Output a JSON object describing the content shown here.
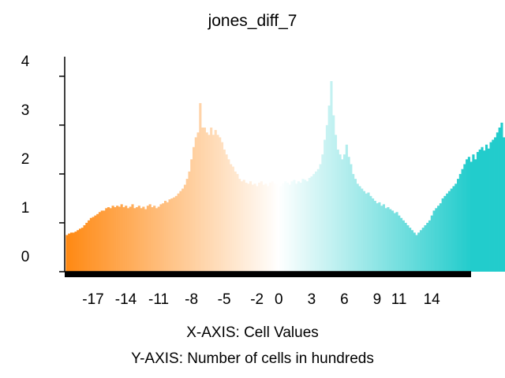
{
  "chart_data": {
    "type": "bar",
    "title": "jones_diff_7",
    "xlabel": "X-AXIS: Cell Values",
    "ylabel": "Y-AXIS: Number of cells in hundreds",
    "xlim": [
      -19.6,
      17.6
    ],
    "ylim": [
      0,
      4.4
    ],
    "x_ticks": [
      -17,
      -14,
      -11,
      -8,
      -5,
      -2,
      0,
      3,
      6,
      9,
      11,
      14
    ],
    "y_ticks": [
      0,
      1,
      2,
      3,
      4
    ],
    "grid": false,
    "legend": "none",
    "colors": {
      "low": "#ff8811",
      "mid": "#ffffff",
      "high": "#22cccc"
    },
    "bin_width": 0.2,
    "x_start": -19.5,
    "values": [
      0.75,
      0.78,
      0.8,
      0.8,
      0.82,
      0.85,
      0.88,
      0.9,
      0.95,
      1.0,
      1.05,
      1.1,
      1.12,
      1.15,
      1.18,
      1.22,
      1.25,
      1.25,
      1.3,
      1.32,
      1.3,
      1.35,
      1.32,
      1.35,
      1.33,
      1.38,
      1.32,
      1.35,
      1.3,
      1.33,
      1.38,
      1.3,
      1.32,
      1.35,
      1.3,
      1.33,
      1.28,
      1.35,
      1.38,
      1.32,
      1.35,
      1.3,
      1.33,
      1.38,
      1.4,
      1.45,
      1.42,
      1.48,
      1.5,
      1.52,
      1.55,
      1.6,
      1.65,
      1.7,
      1.78,
      1.9,
      2.05,
      2.3,
      2.55,
      2.75,
      2.85,
      3.45,
      2.95,
      2.95,
      2.85,
      2.8,
      2.95,
      2.8,
      2.9,
      2.8,
      2.75,
      2.65,
      2.5,
      2.4,
      2.3,
      2.2,
      2.15,
      2.05,
      2.0,
      1.9,
      1.85,
      1.88,
      1.82,
      1.8,
      1.85,
      1.78,
      1.8,
      1.75,
      1.82,
      1.85,
      1.78,
      1.8,
      1.75,
      1.82,
      1.85,
      1.8,
      1.78,
      1.82,
      1.75,
      1.8,
      1.85,
      1.82,
      1.78,
      1.85,
      1.88,
      1.8,
      1.85,
      1.82,
      1.9,
      1.88,
      1.85,
      1.92,
      1.95,
      2.0,
      2.05,
      2.1,
      2.2,
      2.4,
      2.7,
      3.0,
      3.4,
      3.9,
      3.2,
      2.8,
      2.5,
      2.4,
      2.3,
      2.4,
      2.6,
      2.35,
      2.2,
      2.0,
      1.9,
      1.8,
      1.75,
      1.7,
      1.65,
      1.6,
      1.62,
      1.55,
      1.5,
      1.45,
      1.4,
      1.42,
      1.35,
      1.38,
      1.3,
      1.32,
      1.28,
      1.25,
      1.2,
      1.22,
      1.15,
      1.1,
      1.05,
      1.0,
      0.95,
      0.9,
      0.85,
      0.8,
      0.75,
      0.8,
      0.85,
      0.9,
      0.95,
      1.0,
      1.05,
      1.15,
      1.25,
      1.3,
      1.35,
      1.4,
      1.5,
      1.55,
      1.6,
      1.65,
      1.7,
      1.75,
      1.8,
      1.9,
      2.0,
      2.1,
      2.2,
      2.3,
      2.35,
      2.25,
      2.4,
      2.3,
      2.45,
      2.5,
      2.55,
      2.48,
      2.6,
      2.52,
      2.65,
      2.7,
      2.75,
      2.85,
      2.95,
      3.05,
      2.75,
      2.55,
      2.5,
      2.4,
      2.3,
      2.2,
      2.15,
      2.2,
      2.25,
      2.3,
      2.4,
      2.5,
      2.7,
      2.9,
      3.1,
      3.25,
      3.3,
      3.2,
      3.35,
      3.3,
      3.4,
      3.45,
      3.5,
      3.6,
      3.55,
      3.7,
      3.8,
      3.75,
      3.9,
      4.2,
      3.95,
      3.85,
      3.7,
      3.75,
      3.9,
      4.0,
      4.15,
      4.4,
      4.3,
      4.2,
      4.25,
      4.1,
      3.95,
      3.8,
      3.7,
      3.9,
      3.75,
      3.6,
      3.4,
      3.3,
      3.5,
      3.45,
      3.25,
      3.2,
      3.1,
      3.0,
      2.9,
      2.85,
      2.75,
      2.7,
      2.6,
      2.5,
      2.4,
      2.3,
      2.2,
      2.15,
      2.05,
      1.95,
      1.85,
      1.75,
      1.65,
      1.6,
      1.55,
      1.5,
      1.45,
      1.4,
      1.42,
      1.4,
      1.38,
      1.42,
      1.35,
      1.4,
      1.38,
      1.42,
      1.4,
      1.38,
      1.35,
      1.25,
      1.15,
      1.05,
      0.9,
      0.75,
      0.65,
      0.6,
      0.62,
      0.58,
      0.55,
      0.52,
      0.55,
      0.58
    ]
  }
}
